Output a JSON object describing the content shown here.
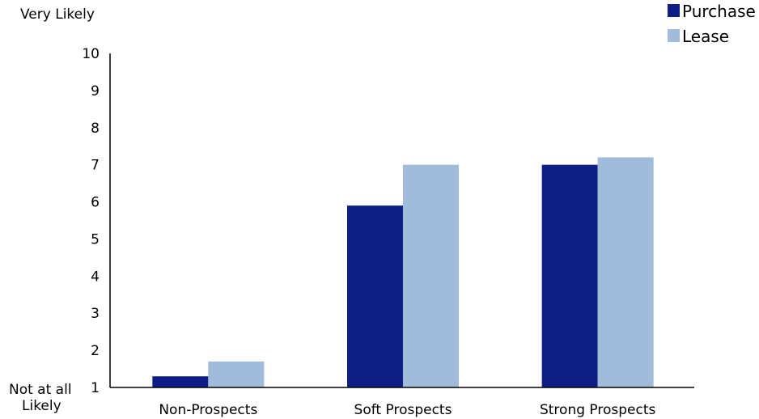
{
  "chart_data": {
    "type": "bar",
    "categories": [
      "Non-Prospects",
      "Soft Prospects",
      "Strong Prospects"
    ],
    "series": [
      {
        "name": "Purchase",
        "color": "#0E1E87",
        "values": [
          1.3,
          5.9,
          7.0
        ]
      },
      {
        "name": "Lease",
        "color": "#A0BCDA",
        "values": [
          1.7,
          7.0,
          7.2
        ]
      }
    ],
    "ylim": [
      1,
      10
    ],
    "yticks": [
      1,
      2,
      3,
      4,
      5,
      6,
      7,
      8,
      9,
      10
    ],
    "top_label": "Very Likely",
    "bottom_label_lines": [
      "Not at all",
      "Likely"
    ],
    "grid": false,
    "legend_position": "top-right"
  }
}
